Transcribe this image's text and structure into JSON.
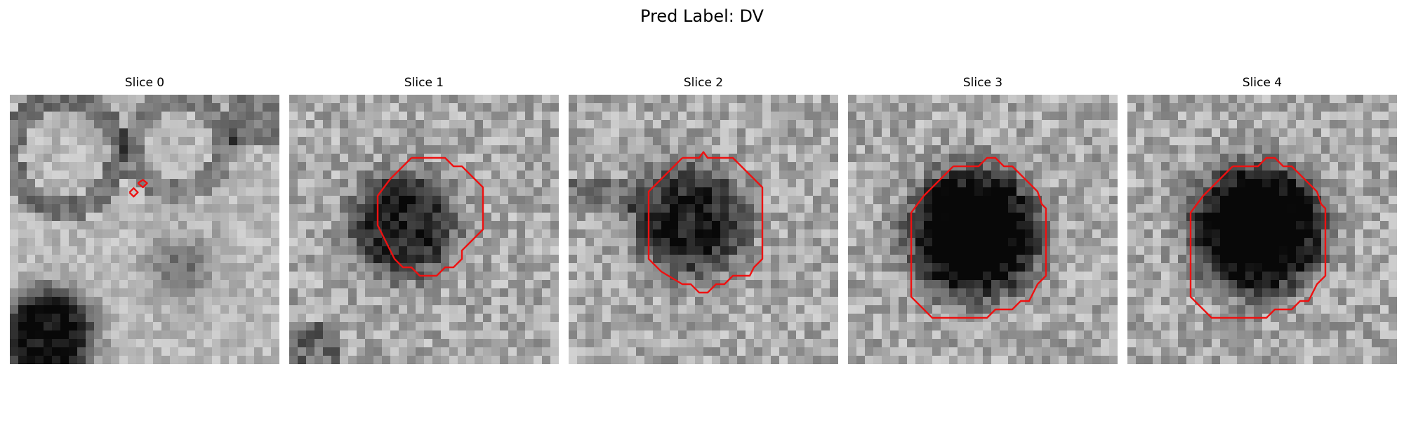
{
  "figure": {
    "title": "Pred Label: DV"
  },
  "colors": {
    "contour": "#ee1111"
  },
  "panels": [
    {
      "title": "Slice 0",
      "seed": 11,
      "blob": [],
      "contours": [
        [
          [
            15.2,
            10.5
          ],
          [
            15.8,
            10.1
          ],
          [
            16.3,
            10.5
          ],
          [
            15.8,
            11.0
          ],
          [
            15.2,
            10.5
          ]
        ],
        [
          [
            14.2,
            11.6
          ],
          [
            14.7,
            11.1
          ],
          [
            15.2,
            11.6
          ],
          [
            14.7,
            12.1
          ],
          [
            14.2,
            11.6
          ]
        ]
      ]
    },
    {
      "title": "Slice 1",
      "seed": 23,
      "blob": [
        13.5,
        15.5,
        6.5,
        0.55
      ],
      "contours": [
        [
          [
            14.5,
            7.5
          ],
          [
            18.5,
            7.5
          ],
          [
            19.5,
            8.5
          ],
          [
            20.5,
            8.5
          ],
          [
            23,
            11
          ],
          [
            23,
            16
          ],
          [
            20.5,
            18.5
          ],
          [
            20.5,
            19.5
          ],
          [
            19.5,
            20.5
          ],
          [
            18.5,
            20.5
          ],
          [
            17.5,
            21.5
          ],
          [
            15.5,
            21.5
          ],
          [
            14.5,
            20.5
          ],
          [
            13.5,
            20.5
          ],
          [
            12.5,
            19.5
          ],
          [
            11.5,
            17.5
          ],
          [
            10.5,
            15.5
          ],
          [
            10.5,
            12
          ],
          [
            12,
            10
          ],
          [
            14.5,
            7.5
          ]
        ]
      ]
    },
    {
      "title": "Slice 2",
      "seed": 37,
      "blob": [
        14.5,
        15.0,
        7.0,
        0.55
      ],
      "contours": [
        [
          [
            13.5,
            7.5
          ],
          [
            15.5,
            7.5
          ],
          [
            16,
            6.8
          ],
          [
            16.5,
            7.5
          ],
          [
            19.5,
            7.5
          ],
          [
            23,
            11
          ],
          [
            23,
            19.5
          ],
          [
            22,
            20.5
          ],
          [
            21.5,
            21.5
          ],
          [
            19.5,
            21.5
          ],
          [
            18.5,
            22.5
          ],
          [
            17.5,
            22.5
          ],
          [
            16.5,
            23.5
          ],
          [
            15.5,
            23.5
          ],
          [
            14.5,
            22.5
          ],
          [
            13.5,
            22.5
          ],
          [
            11,
            21
          ],
          [
            9.5,
            19.5
          ],
          [
            9.5,
            11.5
          ],
          [
            13.5,
            7.5
          ]
        ]
      ]
    },
    {
      "title": "Slice 3",
      "seed": 51,
      "blob": [
        15.0,
        16.5,
        8.0,
        0.82
      ],
      "contours": [
        [
          [
            12.5,
            8.5
          ],
          [
            15.5,
            8.5
          ],
          [
            16.5,
            7.5
          ],
          [
            17.5,
            7.5
          ],
          [
            18.5,
            8.5
          ],
          [
            19.5,
            8.5
          ],
          [
            20.5,
            9.5
          ],
          [
            22.5,
            11.5
          ],
          [
            23,
            13
          ],
          [
            23.5,
            13.5
          ],
          [
            23.5,
            21.5
          ],
          [
            22.5,
            22.5
          ],
          [
            22,
            23.5
          ],
          [
            21.5,
            24.5
          ],
          [
            20.5,
            24.5
          ],
          [
            19.5,
            25.5
          ],
          [
            17.5,
            25.5
          ],
          [
            16.5,
            26.5
          ],
          [
            10,
            26.5
          ],
          [
            7.5,
            24
          ],
          [
            7.5,
            14
          ],
          [
            9,
            12
          ],
          [
            12.5,
            8.5
          ]
        ]
      ]
    },
    {
      "title": "Slice 4",
      "seed": 67,
      "blob": [
        15.5,
        16.0,
        8.0,
        0.82
      ],
      "contours": [
        [
          [
            12.5,
            8.5
          ],
          [
            15.5,
            8.5
          ],
          [
            16.5,
            7.5
          ],
          [
            17.5,
            7.5
          ],
          [
            18.5,
            8.5
          ],
          [
            19.5,
            8.5
          ],
          [
            20.5,
            9.5
          ],
          [
            22.5,
            11.5
          ],
          [
            23,
            13
          ],
          [
            23.5,
            13.5
          ],
          [
            23.5,
            21.5
          ],
          [
            22.5,
            22.5
          ],
          [
            22,
            23.5
          ],
          [
            21.5,
            24.5
          ],
          [
            20.5,
            24.5
          ],
          [
            19.5,
            25.5
          ],
          [
            17.5,
            25.5
          ],
          [
            16.5,
            26.5
          ],
          [
            10,
            26.5
          ],
          [
            7.5,
            24
          ],
          [
            7.5,
            14
          ],
          [
            9,
            12
          ],
          [
            12.5,
            8.5
          ]
        ]
      ]
    }
  ]
}
